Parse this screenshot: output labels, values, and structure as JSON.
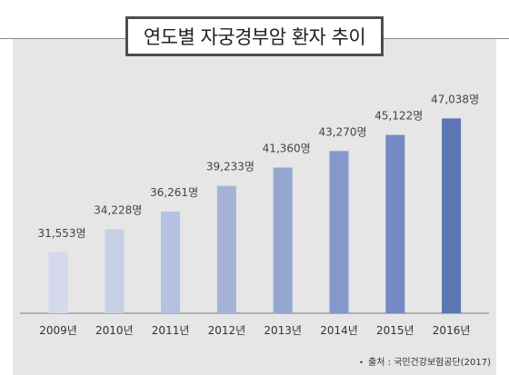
{
  "chart_data": {
    "type": "bar",
    "title": "연도별 자궁경부암 환자 추이",
    "xlabel": "",
    "ylabel": "",
    "categories": [
      "2009년",
      "2010년",
      "2011년",
      "2012년",
      "2013년",
      "2014년",
      "2015년",
      "2016년"
    ],
    "values": [
      31553,
      34228,
      36261,
      39233,
      41360,
      43270,
      45122,
      47038
    ],
    "value_labels": [
      "31,553명",
      "34,228명",
      "36,261명",
      "39,233명",
      "41,360명",
      "43,270명",
      "45,122명",
      "47,038명"
    ],
    "ylim": [
      24500,
      47500
    ],
    "grid": false,
    "legend": "none",
    "bar_colors": [
      "#d3d9ea",
      "#c6cfe6",
      "#b5c1e0",
      "#a5b3d8",
      "#95a7d1",
      "#8598ca",
      "#7589c2",
      "#5b76b3"
    ]
  },
  "source": {
    "bullet": "•",
    "text": "출처 : 국민건강보험공단(2017)"
  }
}
